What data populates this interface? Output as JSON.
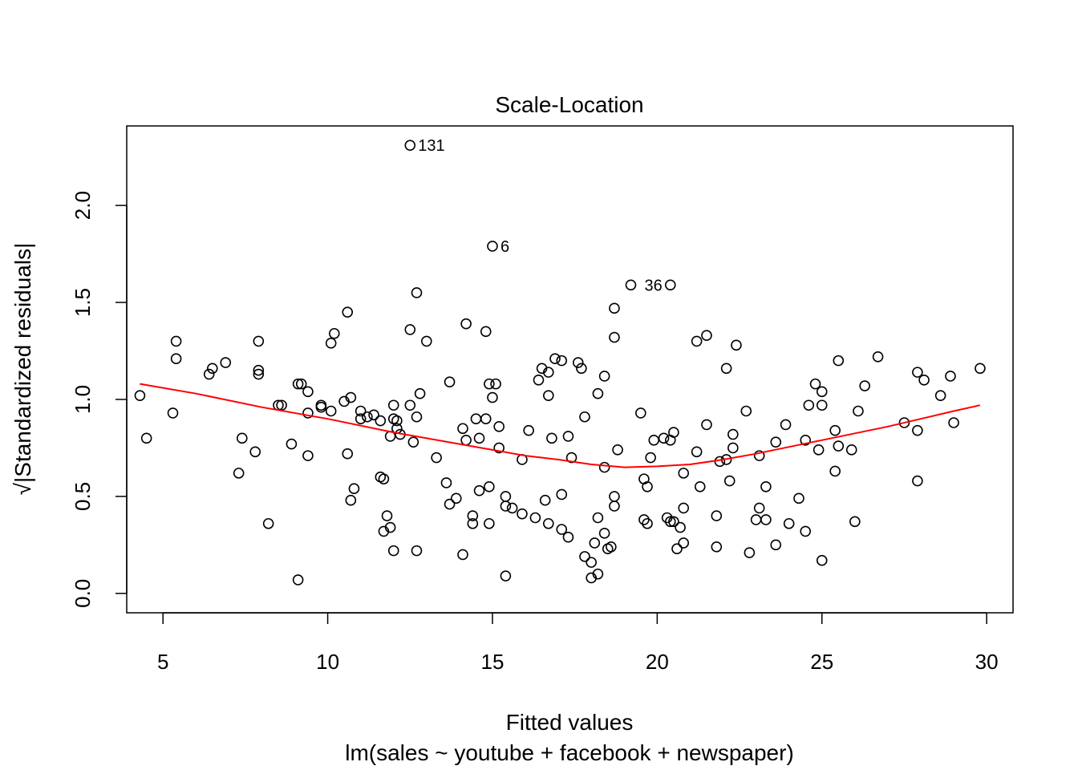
{
  "chart_data": {
    "type": "scatter",
    "title": "Scale-Location",
    "xlabel": "Fitted values",
    "subtitle": "lm(sales ~ youtube + facebook + newspaper)",
    "ylabel": "√|Standardized residuals|",
    "xlim": [
      3.9,
      30.8
    ],
    "ylim": [
      -0.1,
      2.41
    ],
    "x_ticks": [
      5,
      10,
      15,
      20,
      25,
      30
    ],
    "y_ticks": [
      0.0,
      0.5,
      1.0,
      1.5,
      2.0
    ],
    "x_tick_labels": [
      "5",
      "10",
      "15",
      "20",
      "25",
      "30"
    ],
    "y_tick_labels": [
      "0.0",
      "0.5",
      "1.0",
      "1.5",
      "2.0"
    ],
    "grid": false,
    "colors": {
      "points": "#000000",
      "smooth": "#ff0000"
    },
    "labeled_points": [
      {
        "label": "131",
        "x": 12.5,
        "y": 2.31
      },
      {
        "label": "6",
        "x": 15.0,
        "y": 1.79
      },
      {
        "label": "36",
        "x": 20.4,
        "y": 1.59
      }
    ],
    "points": [
      [
        12.5,
        2.31
      ],
      [
        15.0,
        1.79
      ],
      [
        20.4,
        1.59
      ],
      [
        19.2,
        1.59
      ],
      [
        4.3,
        1.02
      ],
      [
        4.5,
        0.8
      ],
      [
        5.3,
        0.93
      ],
      [
        5.4,
        1.21
      ],
      [
        5.4,
        1.3
      ],
      [
        6.4,
        1.13
      ],
      [
        6.5,
        1.16
      ],
      [
        6.9,
        1.19
      ],
      [
        7.3,
        0.62
      ],
      [
        7.4,
        0.8
      ],
      [
        7.8,
        0.73
      ],
      [
        7.9,
        1.13
      ],
      [
        7.9,
        1.15
      ],
      [
        7.9,
        1.3
      ],
      [
        8.2,
        0.36
      ],
      [
        8.5,
        0.97
      ],
      [
        8.6,
        0.97
      ],
      [
        8.9,
        0.77
      ],
      [
        9.1,
        0.07
      ],
      [
        9.1,
        1.08
      ],
      [
        9.2,
        1.08
      ],
      [
        9.4,
        0.71
      ],
      [
        9.4,
        0.93
      ],
      [
        9.4,
        1.04
      ],
      [
        9.8,
        0.96
      ],
      [
        9.8,
        0.97
      ],
      [
        10.1,
        0.94
      ],
      [
        10.1,
        1.29
      ],
      [
        10.2,
        1.34
      ],
      [
        10.5,
        0.99
      ],
      [
        10.6,
        1.45
      ],
      [
        10.6,
        0.72
      ],
      [
        10.7,
        1.01
      ],
      [
        10.7,
        0.48
      ],
      [
        10.8,
        0.54
      ],
      [
        11.0,
        0.9
      ],
      [
        11.0,
        0.94
      ],
      [
        11.2,
        0.91
      ],
      [
        11.4,
        0.92
      ],
      [
        11.6,
        0.89
      ],
      [
        11.6,
        0.6
      ],
      [
        11.7,
        0.59
      ],
      [
        11.7,
        0.32
      ],
      [
        11.8,
        0.4
      ],
      [
        11.9,
        0.34
      ],
      [
        11.9,
        0.81
      ],
      [
        12.0,
        0.9
      ],
      [
        12.0,
        0.97
      ],
      [
        12.0,
        0.22
      ],
      [
        12.1,
        0.85
      ],
      [
        12.1,
        0.89
      ],
      [
        12.2,
        0.82
      ],
      [
        12.5,
        0.97
      ],
      [
        12.5,
        1.36
      ],
      [
        12.6,
        0.78
      ],
      [
        12.7,
        1.55
      ],
      [
        12.7,
        0.91
      ],
      [
        12.7,
        0.22
      ],
      [
        12.8,
        1.03
      ],
      [
        13.0,
        1.3
      ],
      [
        13.3,
        0.7
      ],
      [
        13.6,
        0.57
      ],
      [
        13.7,
        0.46
      ],
      [
        13.7,
        1.09
      ],
      [
        13.9,
        0.49
      ],
      [
        14.1,
        0.2
      ],
      [
        14.1,
        0.85
      ],
      [
        14.2,
        0.79
      ],
      [
        14.2,
        1.39
      ],
      [
        14.4,
        0.4
      ],
      [
        14.4,
        0.36
      ],
      [
        14.5,
        0.9
      ],
      [
        14.6,
        0.8
      ],
      [
        14.6,
        0.53
      ],
      [
        14.8,
        1.35
      ],
      [
        14.8,
        0.9
      ],
      [
        14.9,
        1.08
      ],
      [
        14.9,
        0.36
      ],
      [
        14.9,
        0.55
      ],
      [
        15.0,
        1.01
      ],
      [
        15.1,
        1.08
      ],
      [
        15.2,
        0.86
      ],
      [
        15.2,
        0.75
      ],
      [
        15.4,
        0.5
      ],
      [
        15.4,
        0.45
      ],
      [
        15.4,
        0.09
      ],
      [
        15.6,
        0.44
      ],
      [
        15.9,
        0.41
      ],
      [
        15.9,
        0.69
      ],
      [
        16.1,
        0.84
      ],
      [
        16.3,
        0.39
      ],
      [
        16.4,
        1.1
      ],
      [
        16.5,
        1.16
      ],
      [
        16.6,
        0.48
      ],
      [
        16.7,
        0.36
      ],
      [
        16.7,
        1.14
      ],
      [
        16.7,
        1.02
      ],
      [
        16.8,
        0.8
      ],
      [
        16.9,
        1.21
      ],
      [
        17.1,
        0.51
      ],
      [
        17.1,
        1.2
      ],
      [
        17.1,
        0.33
      ],
      [
        17.3,
        0.29
      ],
      [
        17.3,
        0.81
      ],
      [
        17.4,
        0.7
      ],
      [
        17.6,
        1.19
      ],
      [
        17.7,
        1.16
      ],
      [
        17.8,
        0.91
      ],
      [
        17.8,
        0.19
      ],
      [
        18.0,
        0.16
      ],
      [
        18.0,
        0.08
      ],
      [
        18.1,
        0.26
      ],
      [
        18.2,
        0.39
      ],
      [
        18.2,
        0.1
      ],
      [
        18.2,
        1.03
      ],
      [
        18.4,
        0.31
      ],
      [
        18.4,
        0.65
      ],
      [
        18.4,
        1.12
      ],
      [
        18.5,
        0.23
      ],
      [
        18.6,
        0.24
      ],
      [
        18.7,
        1.32
      ],
      [
        18.7,
        1.47
      ],
      [
        18.7,
        0.45
      ],
      [
        18.7,
        0.5
      ],
      [
        18.8,
        0.74
      ],
      [
        19.5,
        0.93
      ],
      [
        19.6,
        0.59
      ],
      [
        19.6,
        0.38
      ],
      [
        19.7,
        0.36
      ],
      [
        19.7,
        0.55
      ],
      [
        19.8,
        0.7
      ],
      [
        19.9,
        0.79
      ],
      [
        20.2,
        0.8
      ],
      [
        20.3,
        0.39
      ],
      [
        20.4,
        0.37
      ],
      [
        20.4,
        0.79
      ],
      [
        20.5,
        0.83
      ],
      [
        20.5,
        0.37
      ],
      [
        20.6,
        0.23
      ],
      [
        20.7,
        0.34
      ],
      [
        20.8,
        0.26
      ],
      [
        20.8,
        0.44
      ],
      [
        20.8,
        0.62
      ],
      [
        21.2,
        1.3
      ],
      [
        21.2,
        0.73
      ],
      [
        21.3,
        0.55
      ],
      [
        21.5,
        0.87
      ],
      [
        21.5,
        1.33
      ],
      [
        21.8,
        0.24
      ],
      [
        21.8,
        0.4
      ],
      [
        21.9,
        0.68
      ],
      [
        22.1,
        1.16
      ],
      [
        22.1,
        0.69
      ],
      [
        22.2,
        0.58
      ],
      [
        22.3,
        0.82
      ],
      [
        22.3,
        0.75
      ],
      [
        22.4,
        1.28
      ],
      [
        22.7,
        0.94
      ],
      [
        22.8,
        0.21
      ],
      [
        23.0,
        0.38
      ],
      [
        23.1,
        0.71
      ],
      [
        23.1,
        0.44
      ],
      [
        23.3,
        0.55
      ],
      [
        23.3,
        0.38
      ],
      [
        23.6,
        0.78
      ],
      [
        23.6,
        0.25
      ],
      [
        23.9,
        0.87
      ],
      [
        24.0,
        0.36
      ],
      [
        24.3,
        0.49
      ],
      [
        24.5,
        0.32
      ],
      [
        24.5,
        0.79
      ],
      [
        24.6,
        0.97
      ],
      [
        24.8,
        1.08
      ],
      [
        24.9,
        0.74
      ],
      [
        25.0,
        1.04
      ],
      [
        25.0,
        0.97
      ],
      [
        25.0,
        0.17
      ],
      [
        25.4,
        0.84
      ],
      [
        25.4,
        0.63
      ],
      [
        25.5,
        1.2
      ],
      [
        25.5,
        0.76
      ],
      [
        25.9,
        0.74
      ],
      [
        26.0,
        0.37
      ],
      [
        26.1,
        0.94
      ],
      [
        26.3,
        1.07
      ],
      [
        26.7,
        1.22
      ],
      [
        27.5,
        0.88
      ],
      [
        27.9,
        1.14
      ],
      [
        27.9,
        0.84
      ],
      [
        27.9,
        0.58
      ],
      [
        28.1,
        1.1
      ],
      [
        28.6,
        1.02
      ],
      [
        28.9,
        1.12
      ],
      [
        29.0,
        0.88
      ],
      [
        29.8,
        1.16
      ]
    ],
    "smooth_line": [
      [
        4.3,
        1.08
      ],
      [
        6,
        1.03
      ],
      [
        8,
        0.96
      ],
      [
        10,
        0.9
      ],
      [
        12,
        0.83
      ],
      [
        14,
        0.77
      ],
      [
        15,
        0.74
      ],
      [
        16,
        0.71
      ],
      [
        17,
        0.69
      ],
      [
        18,
        0.665
      ],
      [
        19,
        0.65
      ],
      [
        20,
        0.655
      ],
      [
        21,
        0.665
      ],
      [
        22,
        0.69
      ],
      [
        23,
        0.72
      ],
      [
        24,
        0.755
      ],
      [
        25,
        0.79
      ],
      [
        26,
        0.825
      ],
      [
        27,
        0.86
      ],
      [
        28,
        0.9
      ],
      [
        29,
        0.94
      ],
      [
        29.8,
        0.97
      ]
    ]
  }
}
